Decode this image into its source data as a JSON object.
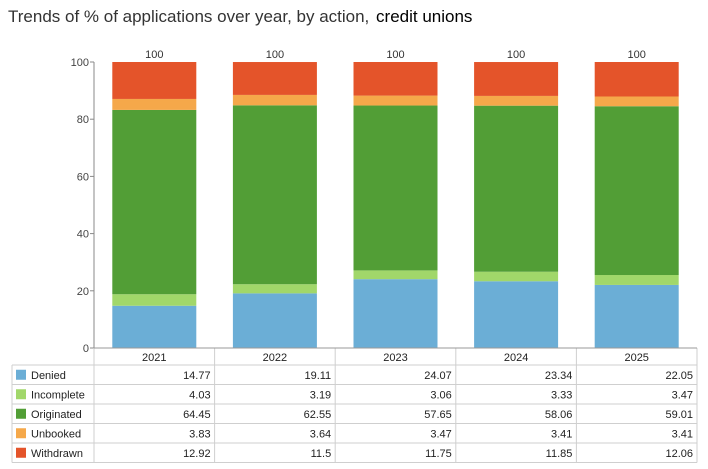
{
  "title": {
    "main": "Trends of % of applications over year, by action,",
    "sub": "credit unions"
  },
  "chart_data": {
    "type": "bar",
    "stacked": true,
    "categories": [
      "2021",
      "2022",
      "2023",
      "2024",
      "2025"
    ],
    "totals": [
      "100",
      "100",
      "100",
      "100",
      "100"
    ],
    "ylim": [
      0,
      100
    ],
    "yticks": [
      0,
      20,
      40,
      60,
      80,
      100
    ],
    "grid": false,
    "legend": "bottom-table",
    "series": [
      {
        "name": "Denied",
        "color": "#6baed6",
        "values": [
          14.77,
          19.11,
          24.07,
          23.34,
          22.05
        ]
      },
      {
        "name": "Incomplete",
        "color": "#a1d76a",
        "values": [
          4.03,
          3.19,
          3.06,
          3.33,
          3.47
        ]
      },
      {
        "name": "Originated",
        "color": "#529e36",
        "values": [
          64.45,
          62.55,
          57.65,
          58.06,
          59.01
        ]
      },
      {
        "name": "Unbooked",
        "color": "#f5a84a",
        "values": [
          3.83,
          3.64,
          3.47,
          3.41,
          3.41
        ]
      },
      {
        "name": "Withdrawn",
        "color": "#e4542a",
        "values": [
          12.92,
          11.5,
          11.75,
          11.85,
          12.06
        ]
      }
    ]
  }
}
